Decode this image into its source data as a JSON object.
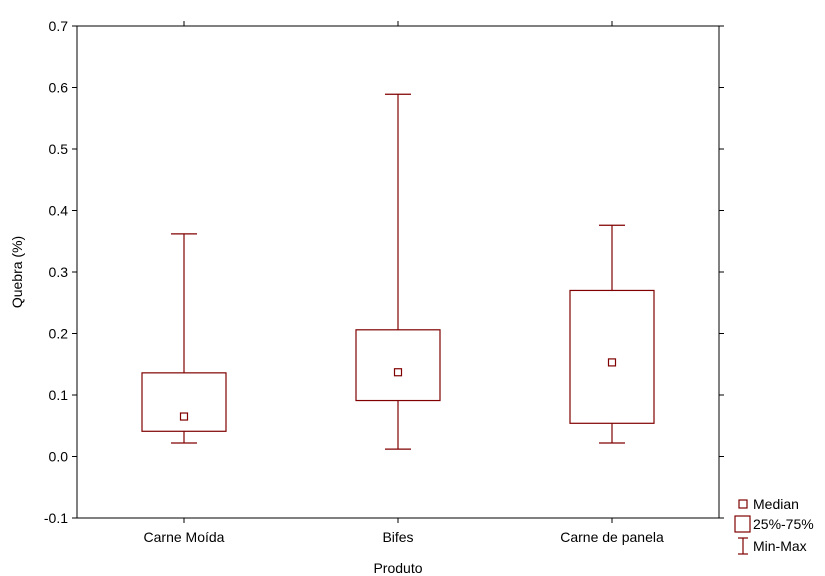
{
  "colors": {
    "series": "#800000",
    "axis": "#000000",
    "background": "#ffffff"
  },
  "chart_data": {
    "type": "boxplot",
    "title": "",
    "xlabel": "Produto",
    "ylabel": "Quebra (%)",
    "ylim": [
      -0.1,
      0.7
    ],
    "yticks": [
      -0.1,
      0.0,
      0.1,
      0.2,
      0.3,
      0.4,
      0.5,
      0.6,
      0.7
    ],
    "ytick_labels": [
      "-0.1",
      "0.0",
      "0.1",
      "0.2",
      "0.3",
      "0.4",
      "0.5",
      "0.6",
      "0.7"
    ],
    "categories": [
      "Carne Moída",
      "Bifes",
      "Carne de panela"
    ],
    "boxes": [
      {
        "min": 0.022,
        "q1": 0.041,
        "median": 0.065,
        "q3": 0.136,
        "max": 0.362
      },
      {
        "min": 0.012,
        "q1": 0.091,
        "median": 0.137,
        "q3": 0.206,
        "max": 0.589
      },
      {
        "min": 0.022,
        "q1": 0.054,
        "median": 0.153,
        "q3": 0.27,
        "max": 0.376
      }
    ],
    "legend": {
      "position": "bottom-right",
      "entries": [
        {
          "symbol": "median",
          "label": "Median"
        },
        {
          "symbol": "box",
          "label": "25%-75%"
        },
        {
          "symbol": "whisker",
          "label": "Min-Max"
        }
      ]
    },
    "grid": false
  }
}
